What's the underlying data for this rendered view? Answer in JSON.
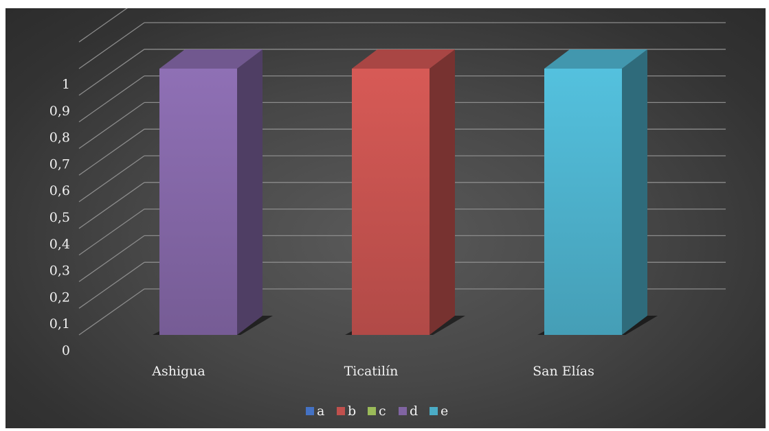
{
  "chart_data": {
    "type": "bar",
    "title": "",
    "xlabel": "",
    "ylabel": "",
    "ylim": [
      0,
      1
    ],
    "y_ticks": [
      "0",
      "0,1",
      "0,2",
      "0,3",
      "0,4",
      "0,5",
      "0,6",
      "0,7",
      "0,8",
      "0,9",
      "1"
    ],
    "y_tick_values": [
      0,
      0.1,
      0.2,
      0.3,
      0.4,
      0.5,
      0.6,
      0.7,
      0.8,
      0.9,
      1
    ],
    "categories": [
      "Ashigua",
      "Ticatilín",
      "San Elías"
    ],
    "series": [
      {
        "name": "a",
        "color": "#4472c4",
        "values": [
          0,
          0,
          0
        ]
      },
      {
        "name": "b",
        "color": "#c0504d",
        "values": [
          0,
          1,
          0
        ]
      },
      {
        "name": "c",
        "color": "#9bbb59",
        "values": [
          0,
          0,
          0
        ]
      },
      {
        "name": "d",
        "color": "#8064a2",
        "values": [
          1,
          0,
          0
        ]
      },
      {
        "name": "e",
        "color": "#4bacc6",
        "values": [
          0,
          0,
          1
        ]
      }
    ],
    "grid": true,
    "three_d": true,
    "legend_position": "bottom",
    "background": "#404040"
  }
}
